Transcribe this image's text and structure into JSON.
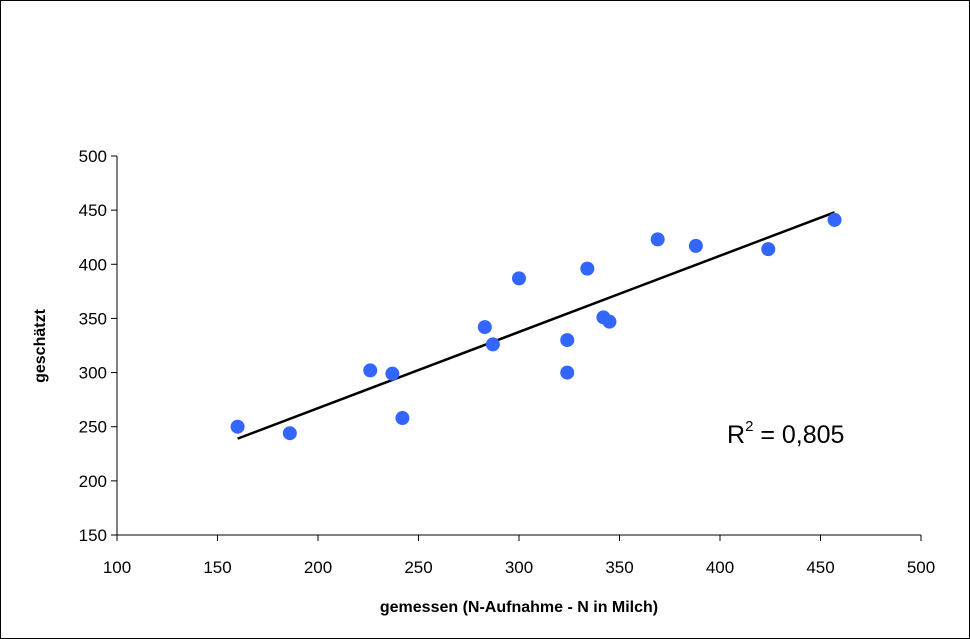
{
  "chart_data": {
    "type": "scatter",
    "title": "",
    "xlabel": "gemessen (N-Aufnahme - N in Milch)",
    "ylabel": "geschätzt",
    "xlim": [
      100,
      500
    ],
    "ylim": [
      150,
      500
    ],
    "xticks": [
      100,
      150,
      200,
      250,
      300,
      350,
      400,
      450,
      500
    ],
    "yticks": [
      150,
      200,
      250,
      300,
      350,
      400,
      450,
      500
    ],
    "grid": false,
    "legend": "none",
    "marker_color": "#3366ff",
    "series": [
      {
        "points": [
          [
            160,
            250
          ],
          [
            186,
            244
          ],
          [
            226,
            302
          ],
          [
            237,
            299
          ],
          [
            242,
            258
          ],
          [
            283,
            342
          ],
          [
            287,
            326
          ],
          [
            300,
            387
          ],
          [
            324,
            330
          ],
          [
            324,
            300
          ],
          [
            334,
            396
          ],
          [
            342,
            351
          ],
          [
            345,
            347
          ],
          [
            369,
            423
          ],
          [
            388,
            417
          ],
          [
            424,
            414
          ],
          [
            457,
            441
          ]
        ]
      }
    ],
    "trendline": {
      "type": "linear",
      "from": [
        160,
        239
      ],
      "to": [
        457,
        448
      ],
      "color": "#000000"
    },
    "annotation": {
      "r2_base": "R",
      "r2_exp": "2",
      "r2_value": " = 0,805"
    }
  }
}
